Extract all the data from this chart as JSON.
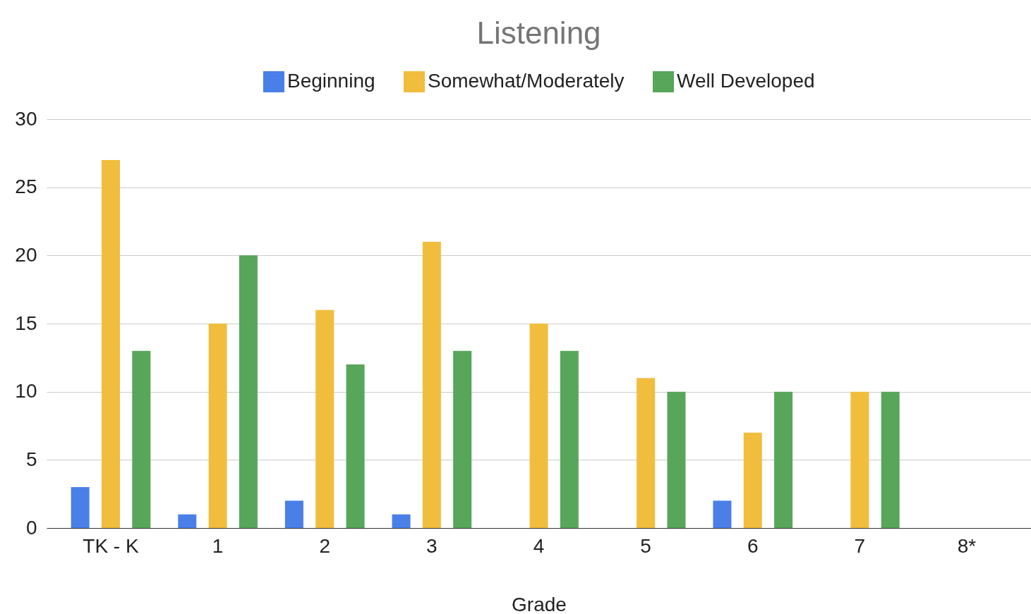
{
  "chart_data": {
    "type": "bar",
    "title": "Listening",
    "xlabel": "Grade",
    "categories": [
      "TK - K",
      "1",
      "2",
      "3",
      "4",
      "5",
      "6",
      "7",
      "8*"
    ],
    "series": [
      {
        "name": "Beginning",
        "color": "#4a7fe8",
        "values": [
          3,
          1,
          2,
          1,
          0,
          0,
          2,
          0,
          0
        ]
      },
      {
        "name": "Somewhat/Moderately",
        "color": "#f1bd3d",
        "values": [
          27,
          15,
          16,
          21,
          15,
          11,
          7,
          10,
          0
        ]
      },
      {
        "name": "Well Developed",
        "color": "#57a65a",
        "values": [
          13,
          20,
          12,
          13,
          13,
          10,
          10,
          10,
          0
        ]
      }
    ],
    "ylim": [
      0,
      30
    ],
    "yticks": [
      0,
      5,
      10,
      15,
      20,
      25,
      30
    ],
    "grid": "y",
    "legend": "top"
  }
}
